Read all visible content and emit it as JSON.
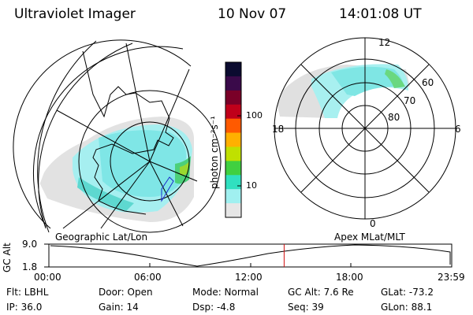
{
  "header": {
    "instrument": "Ultraviolet Imager",
    "date": "10 Nov 07",
    "time": "14:01:08 UT"
  },
  "colorbar": {
    "unit_label": "photon cm⁻²s⁻¹",
    "ticks": [
      "100",
      "10"
    ],
    "colors": [
      "#0b0b30",
      "#3a0a4a",
      "#7a0028",
      "#c0001a",
      "#ff5a00",
      "#ffb000",
      "#c0e000",
      "#40d040",
      "#30e0c0",
      "#a0f0f0",
      "#e6e6e6"
    ]
  },
  "left_map": {
    "label": "Geographic Lat/Lon"
  },
  "right_map": {
    "label": "Apex MLat/MLT",
    "mlt_labels": [
      "12",
      "18",
      "6",
      "0"
    ],
    "lat_labels": [
      "60",
      "70",
      "80"
    ]
  },
  "timeline": {
    "ylabel": "GC Alt",
    "y_ticks": [
      "9.0",
      "1.8"
    ],
    "x_ticks": [
      "00:00",
      "06:00",
      "12:00",
      "18:00",
      "23:59"
    ],
    "current_time_fraction": 0.584
  },
  "status": {
    "flt": "Flt: LBHL",
    "ip": "IP: 36.0",
    "door": "Door: Open",
    "gain": "Gain: 14",
    "mode": "Mode: Normal",
    "dsp": "Dsp:    -4.8",
    "gc_alt": "GC Alt: 7.6 Re",
    "seq": "Seq: 39",
    "glat": "GLat: -73.2",
    "glon": "GLon:  88.1"
  }
}
